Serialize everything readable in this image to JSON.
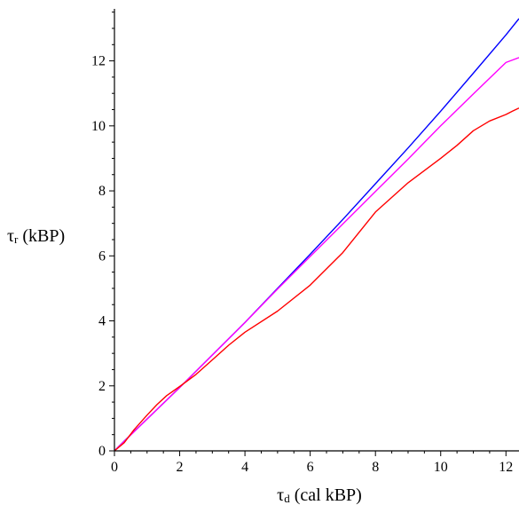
{
  "chart_data": {
    "type": "line",
    "title": "",
    "xlabel": {
      "symbol": "τ",
      "subscript": "d",
      "rest": " (cal kBP)"
    },
    "ylabel": {
      "symbol": "τ",
      "subscript": "r",
      "rest": " (kBP)"
    },
    "xlim": [
      0,
      12.4
    ],
    "ylim": [
      0,
      13.6
    ],
    "x_ticks": [
      "0",
      "2",
      "4",
      "6",
      "8",
      "10",
      "12"
    ],
    "y_ticks": [
      "0",
      "2",
      "4",
      "6",
      "8",
      "10",
      "12"
    ],
    "grid": false,
    "legend": "none",
    "series": [
      {
        "color": "#0000ff",
        "points": [
          [
            0,
            0
          ],
          [
            0.3,
            0.3
          ],
          [
            1,
            0.98
          ],
          [
            2,
            1.95
          ],
          [
            3,
            2.95
          ],
          [
            4,
            3.95
          ],
          [
            5,
            5.0
          ],
          [
            6,
            6.05
          ],
          [
            7,
            7.12
          ],
          [
            8,
            8.22
          ],
          [
            9,
            9.32
          ],
          [
            10,
            10.45
          ],
          [
            11,
            11.62
          ],
          [
            12,
            12.8
          ],
          [
            12.4,
            13.3
          ]
        ]
      },
      {
        "color": "#ff00ff",
        "points": [
          [
            0,
            0
          ],
          [
            1,
            0.98
          ],
          [
            2,
            1.95
          ],
          [
            3,
            2.95
          ],
          [
            4,
            3.95
          ],
          [
            5,
            4.98
          ],
          [
            6,
            5.98
          ],
          [
            7,
            6.98
          ],
          [
            8,
            7.98
          ],
          [
            9,
            8.98
          ],
          [
            10,
            10.0
          ],
          [
            11,
            10.98
          ],
          [
            12,
            11.95
          ],
          [
            12.4,
            12.1
          ]
        ]
      },
      {
        "color": "#ff0000",
        "points": [
          [
            0,
            0
          ],
          [
            0.3,
            0.25
          ],
          [
            0.6,
            0.65
          ],
          [
            1,
            1.1
          ],
          [
            1.3,
            1.42
          ],
          [
            1.6,
            1.7
          ],
          [
            2,
            1.98
          ],
          [
            2.5,
            2.35
          ],
          [
            3,
            2.8
          ],
          [
            3.5,
            3.25
          ],
          [
            4,
            3.65
          ],
          [
            5,
            4.3
          ],
          [
            6,
            5.1
          ],
          [
            7,
            6.1
          ],
          [
            8,
            7.35
          ],
          [
            9,
            8.25
          ],
          [
            10,
            9.0
          ],
          [
            10.5,
            9.4
          ],
          [
            11,
            9.85
          ],
          [
            11.5,
            10.15
          ],
          [
            12,
            10.35
          ],
          [
            12.2,
            10.45
          ],
          [
            12.4,
            10.55
          ]
        ]
      }
    ]
  }
}
